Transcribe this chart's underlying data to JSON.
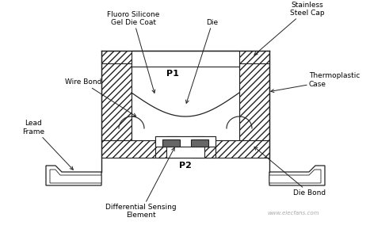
{
  "ec": "#222222",
  "labels": {
    "fluoro_silicone": "Fluoro Silicone\nGel Die Coat",
    "die": "Die",
    "stainless": "Stainless\nSteel Cap",
    "wire_bond": "Wire Bond",
    "thermoplastic": "Thermoplastic\nCase",
    "lead_frame": "Lead\nFrame",
    "differential": "Differential Sensing\nElement",
    "p1": "P1",
    "p2": "P2",
    "die_bond": "Die Bond"
  },
  "watermark": "www.elecfans.com",
  "font_size_label": 6.5,
  "font_size_p": 8
}
